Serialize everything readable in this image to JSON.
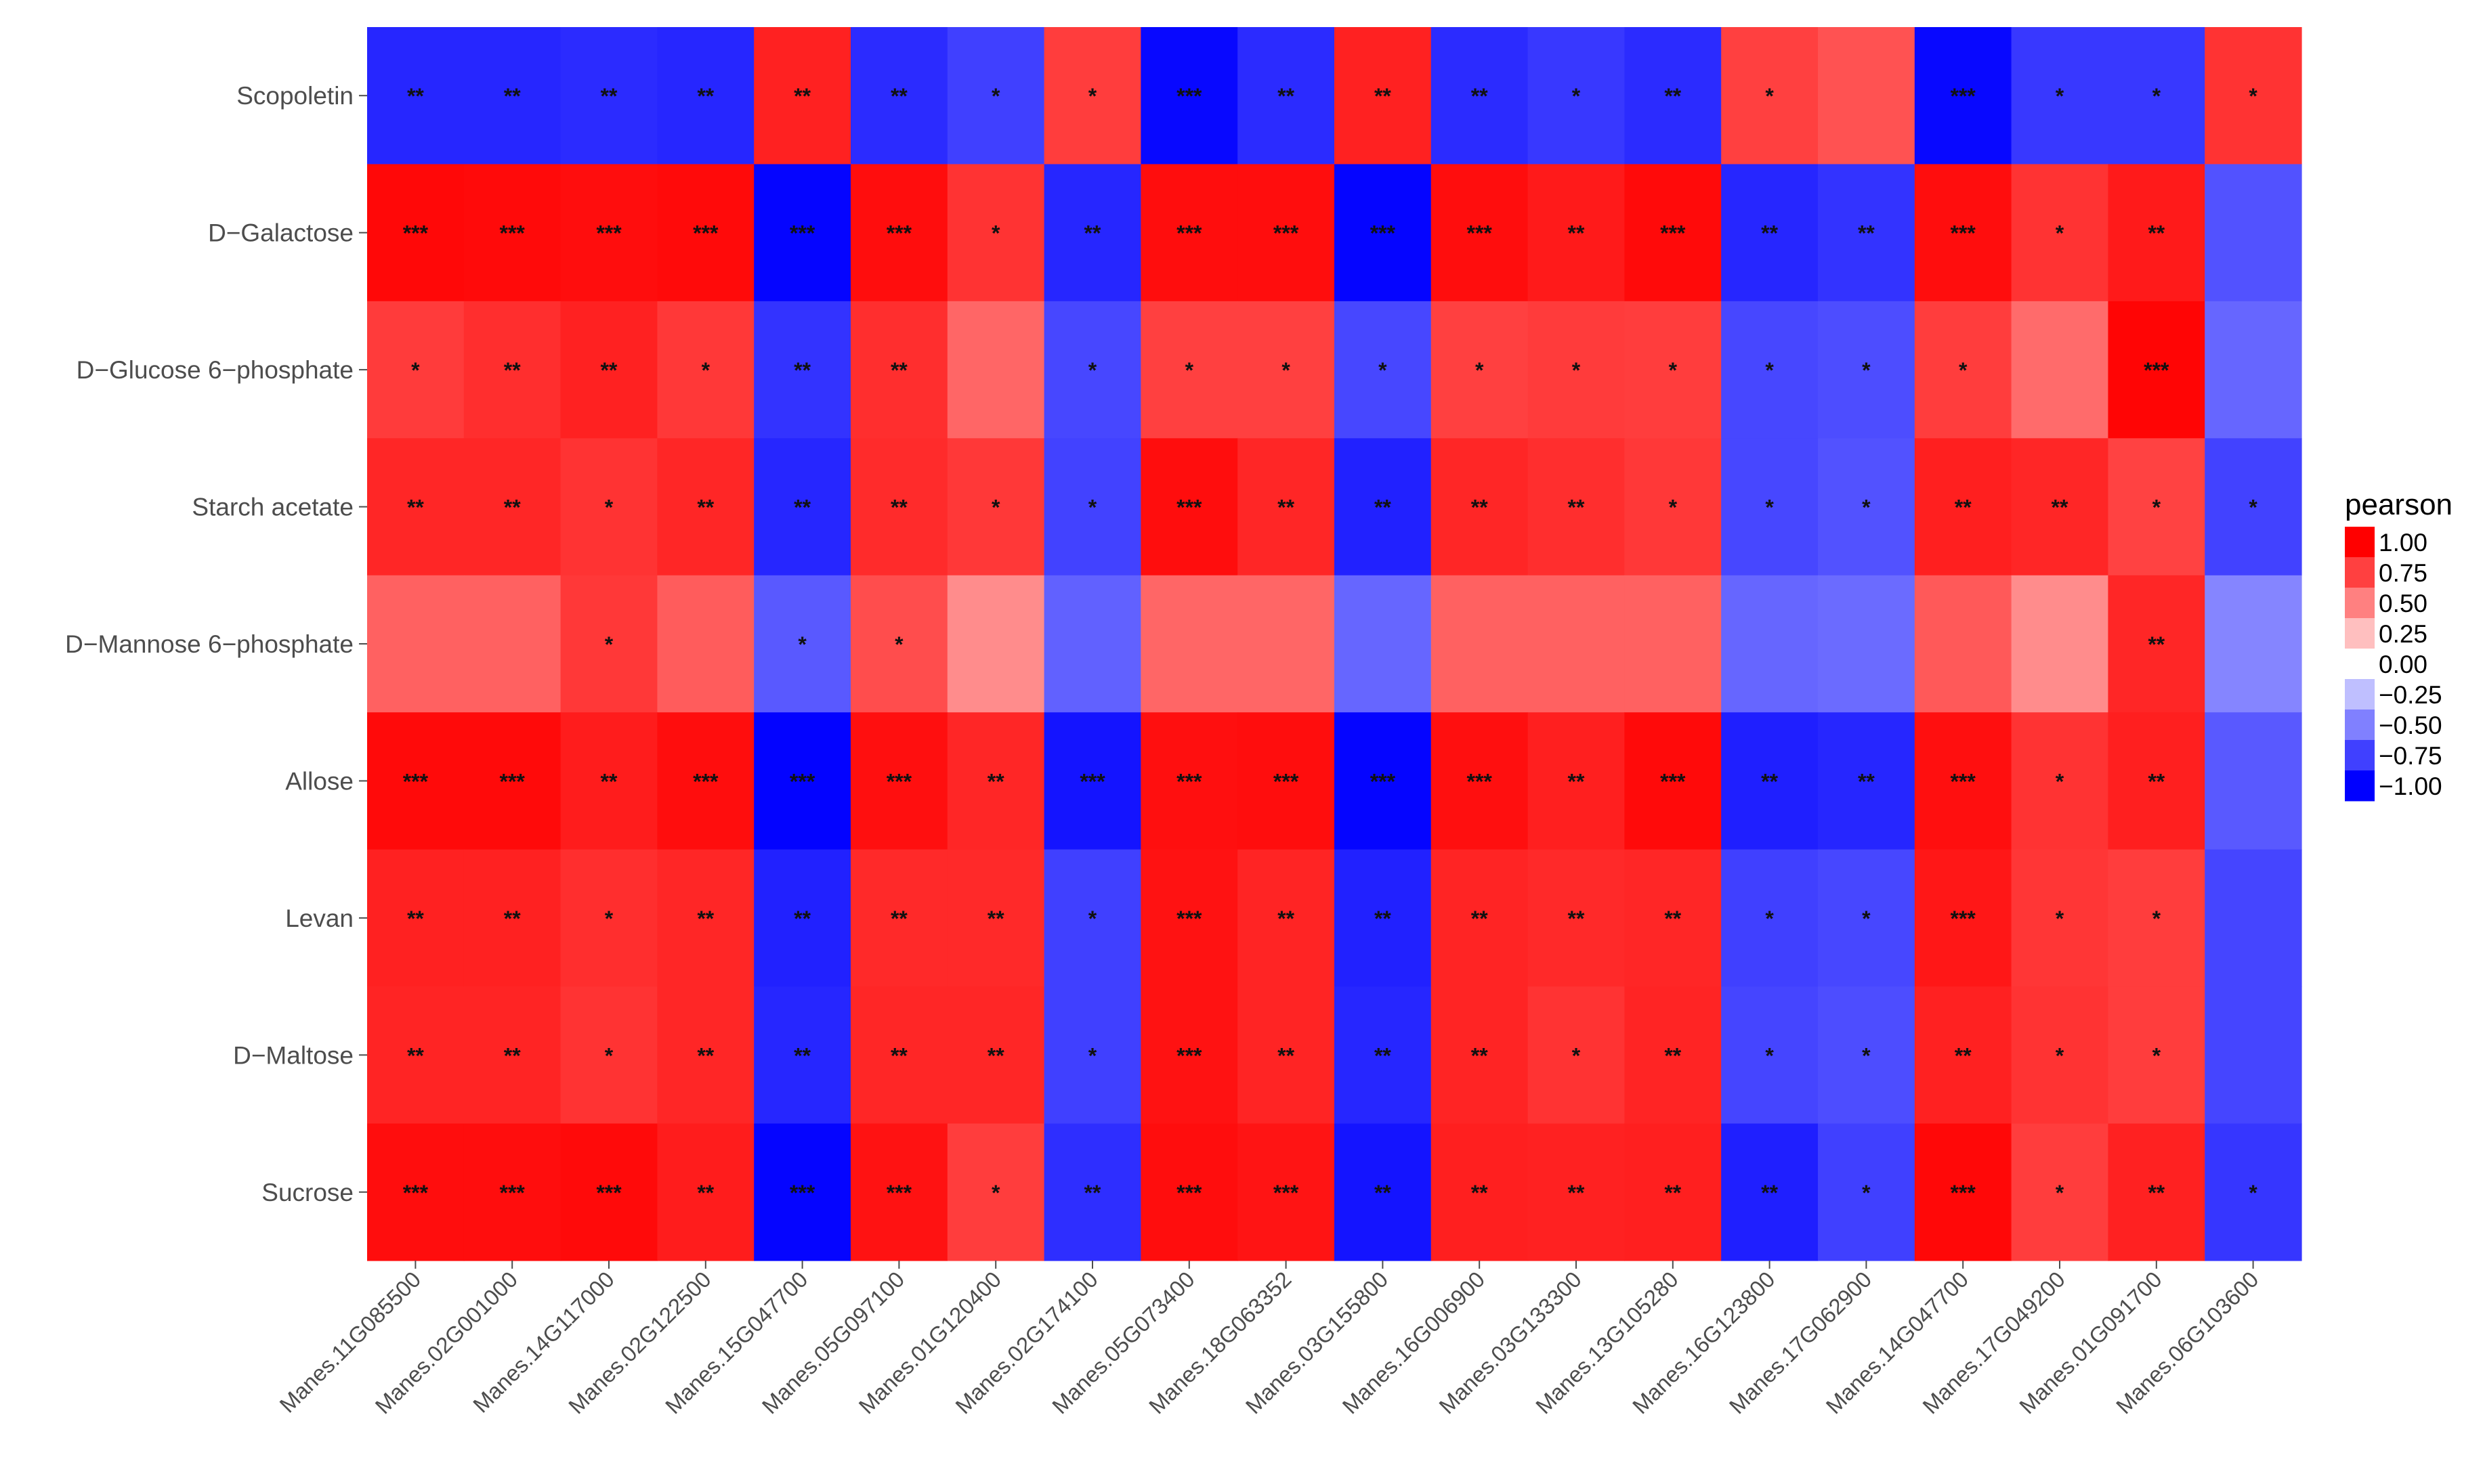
{
  "chart_data": {
    "type": "heatmap",
    "title": "",
    "xlabel": "",
    "ylabel": "",
    "legend": {
      "title": "pearson",
      "position": "right",
      "breaks": [
        "1.00",
        "0.75",
        "0.50",
        "0.25",
        "0.00",
        "−0.25",
        "−0.50",
        "−0.75",
        "−1.00"
      ]
    },
    "rows": [
      "Scopoletin",
      "D−Galactose",
      "D−Glucose 6−phosphate",
      "Starch acetate",
      "D−Mannose 6−phosphate",
      "Allose",
      "Levan",
      "D−Maltose",
      "Sucrose"
    ],
    "columns": [
      "Manes.11G085500",
      "Manes.02G001000",
      "Manes.14G117000",
      "Manes.02G122500",
      "Manes.15G047700",
      "Manes.05G097100",
      "Manes.01G120400",
      "Manes.02G174100",
      "Manes.05G073400",
      "Manes.18G063352",
      "Manes.03G155800",
      "Manes.16G006900",
      "Manes.03G133300",
      "Manes.13G105280",
      "Manes.16G123800",
      "Manes.17G062900",
      "Manes.14G047700",
      "Manes.17G049200",
      "Manes.01G091700",
      "Manes.06G103600"
    ],
    "values": [
      [
        -0.85,
        -0.85,
        -0.83,
        -0.85,
        0.87,
        -0.83,
        -0.75,
        0.76,
        -0.97,
        -0.83,
        0.87,
        -0.83,
        -0.78,
        -0.83,
        0.75,
        0.68,
        -0.97,
        -0.78,
        -0.78,
        0.8
      ],
      [
        0.97,
        0.96,
        0.95,
        0.96,
        -0.98,
        0.95,
        0.8,
        -0.85,
        0.95,
        0.95,
        -0.98,
        0.95,
        0.9,
        0.96,
        -0.85,
        -0.8,
        0.95,
        0.8,
        0.9,
        -0.68
      ],
      [
        0.77,
        0.82,
        0.87,
        0.78,
        -0.8,
        0.82,
        0.6,
        -0.72,
        0.75,
        0.75,
        -0.72,
        0.75,
        0.77,
        0.76,
        -0.72,
        -0.7,
        0.76,
        0.58,
        0.98,
        -0.6
      ],
      [
        0.85,
        0.85,
        0.8,
        0.85,
        -0.85,
        0.83,
        0.78,
        -0.74,
        0.95,
        0.85,
        -0.87,
        0.85,
        0.82,
        0.78,
        -0.72,
        -0.68,
        0.88,
        0.85,
        0.74,
        -0.74
      ],
      [
        0.62,
        0.62,
        0.78,
        0.64,
        -0.65,
        0.7,
        0.45,
        -0.62,
        0.6,
        0.6,
        -0.6,
        0.62,
        0.62,
        0.62,
        -0.6,
        -0.58,
        0.65,
        0.45,
        0.85,
        -0.48
      ],
      [
        0.96,
        0.96,
        0.89,
        0.95,
        -0.99,
        0.94,
        0.85,
        -0.92,
        0.94,
        0.95,
        -0.98,
        0.94,
        0.88,
        0.96,
        -0.88,
        -0.85,
        0.94,
        0.8,
        0.88,
        -0.65
      ],
      [
        0.87,
        0.87,
        0.82,
        0.85,
        -0.87,
        0.84,
        0.84,
        -0.75,
        0.93,
        0.86,
        -0.87,
        0.86,
        0.84,
        0.85,
        -0.75,
        -0.72,
        0.91,
        0.79,
        0.76,
        -0.73
      ],
      [
        0.86,
        0.86,
        0.8,
        0.85,
        -0.85,
        0.85,
        0.85,
        -0.75,
        0.93,
        0.86,
        -0.85,
        0.86,
        0.8,
        0.86,
        -0.73,
        -0.7,
        0.87,
        0.8,
        0.76,
        -0.73
      ],
      [
        0.95,
        0.95,
        0.96,
        0.89,
        -0.98,
        0.93,
        0.76,
        -0.82,
        0.95,
        0.92,
        -0.92,
        0.88,
        0.87,
        0.88,
        -0.88,
        -0.75,
        0.97,
        0.76,
        0.87,
        -0.79
      ]
    ],
    "significance": [
      [
        "**",
        "**",
        "**",
        "**",
        "**",
        "**",
        "*",
        "*",
        "***",
        "**",
        "**",
        "**",
        "*",
        "**",
        "*",
        "",
        "***",
        "*",
        "*",
        "*"
      ],
      [
        "***",
        "***",
        "***",
        "***",
        "***",
        "***",
        "*",
        "**",
        "***",
        "***",
        "***",
        "***",
        "**",
        "***",
        "**",
        "**",
        "***",
        "*",
        "**",
        ""
      ],
      [
        "*",
        "**",
        "**",
        "*",
        "**",
        "**",
        "",
        "*",
        "*",
        "*",
        "*",
        "*",
        "*",
        "*",
        "*",
        "*",
        "*",
        "",
        "***",
        ""
      ],
      [
        "**",
        "**",
        "*",
        "**",
        "**",
        "**",
        "*",
        "*",
        "***",
        "**",
        "**",
        "**",
        "**",
        "*",
        "*",
        "*",
        "**",
        "**",
        "*",
        "*"
      ],
      [
        "",
        "",
        "*",
        "",
        "*",
        "*",
        "",
        "",
        "",
        "",
        "",
        "",
        "",
        "",
        "",
        "",
        "",
        "",
        "**",
        ""
      ],
      [
        "***",
        "***",
        "**",
        "***",
        "***",
        "***",
        "**",
        "***",
        "***",
        "***",
        "***",
        "***",
        "**",
        "***",
        "**",
        "**",
        "***",
        "*",
        "**",
        ""
      ],
      [
        "**",
        "**",
        "*",
        "**",
        "**",
        "**",
        "**",
        "*",
        "***",
        "**",
        "**",
        "**",
        "**",
        "**",
        "*",
        "*",
        "***",
        "*",
        "*",
        ""
      ],
      [
        "**",
        "**",
        "*",
        "**",
        "**",
        "**",
        "**",
        "*",
        "***",
        "**",
        "**",
        "**",
        "*",
        "**",
        "*",
        "*",
        "**",
        "*",
        "*",
        ""
      ],
      [
        "***",
        "***",
        "***",
        "**",
        "***",
        "***",
        "*",
        "**",
        "***",
        "***",
        "**",
        "**",
        "**",
        "**",
        "**",
        "*",
        "***",
        "*",
        "**",
        "*"
      ]
    ],
    "color_scale": {
      "low": "#0000ff",
      "mid": "#ffffff",
      "high": "#ff0000",
      "limits": [
        -1,
        1
      ]
    }
  }
}
